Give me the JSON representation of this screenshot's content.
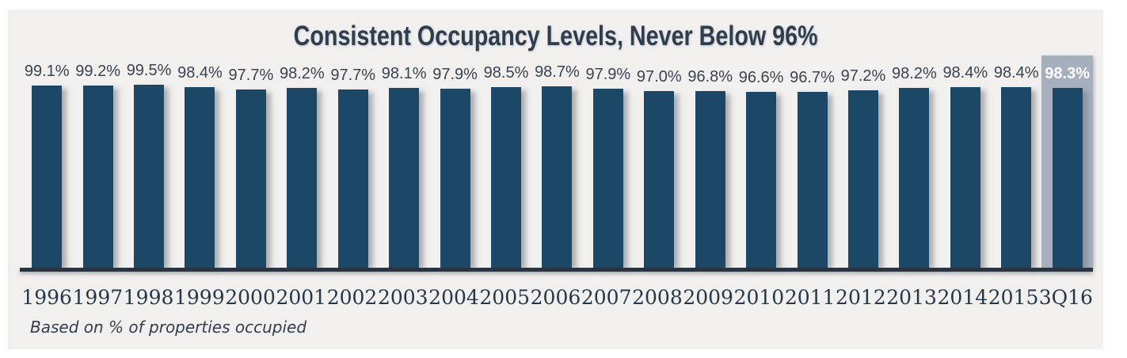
{
  "title": "Consistent Occupancy Levels, Never Below 96%",
  "footnote": "Based on % of properties occupied",
  "chart_data": {
    "type": "bar",
    "title": "Consistent Occupancy Levels, Never Below 96%",
    "categories": [
      "1996",
      "1997",
      "1998",
      "1999",
      "2000",
      "2001",
      "2002",
      "2003",
      "2004",
      "2005",
      "2006",
      "2007",
      "2008",
      "2009",
      "2010",
      "2011",
      "2012",
      "2013",
      "2014",
      "2015",
      "3Q16"
    ],
    "values": [
      99.1,
      99.2,
      99.5,
      98.4,
      97.7,
      98.2,
      97.7,
      98.1,
      97.9,
      98.5,
      98.7,
      97.9,
      97.0,
      96.8,
      96.6,
      96.7,
      97.2,
      98.2,
      98.4,
      98.4,
      98.3
    ],
    "value_suffix": "%",
    "data_labels": [
      "99.1%",
      "99.2%",
      "99.5%",
      "98.4%",
      "97.7%",
      "98.2%",
      "97.7%",
      "98.1%",
      "97.9%",
      "98.5%",
      "98.7%",
      "97.9%",
      "97.0%",
      "96.8%",
      "96.6%",
      "96.7%",
      "97.2%",
      "98.2%",
      "98.4%",
      "98.4%",
      "98.3%"
    ],
    "highlighted_category": "3Q16",
    "xlabel": "",
    "ylabel": "",
    "ylim": [
      0,
      100
    ],
    "grid": false,
    "legend": "none",
    "annotation": "Based on % of properties occupied"
  },
  "colors": {
    "panel_background": "#F1F0EE",
    "bar": "#1C4766",
    "axis_line": "#2A3440",
    "highlight_background": "#A6AFBD",
    "highlight_label_text": "#FFFFFF",
    "title_text": "#323D4C",
    "value_label_text": "#3A4350",
    "year_label_text": "#25384A",
    "footnote_text": "#333E4D"
  }
}
